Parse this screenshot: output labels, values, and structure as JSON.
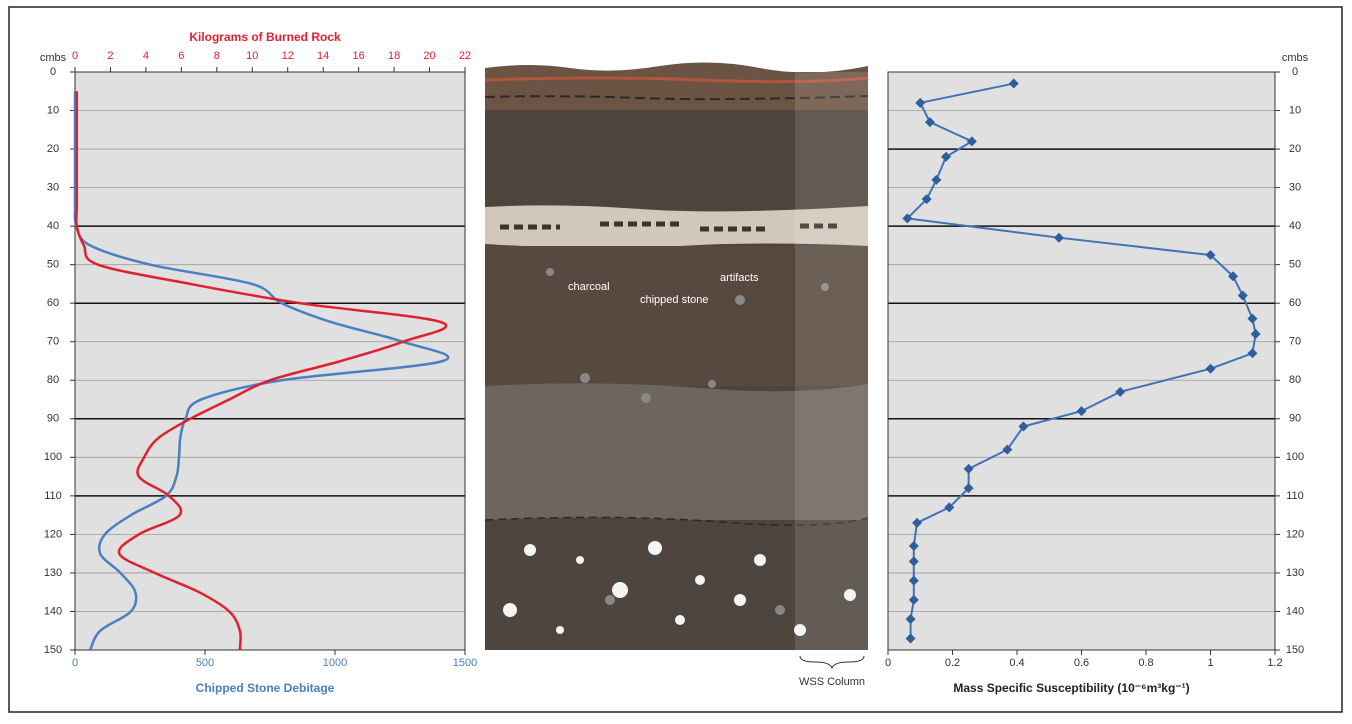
{
  "chart_data": [
    {
      "type": "line",
      "y_label": "cmbs",
      "ylim": [
        0,
        150
      ],
      "yticks": [
        0,
        10,
        20,
        30,
        40,
        50,
        60,
        70,
        80,
        90,
        100,
        110,
        120,
        130,
        140,
        150
      ],
      "horizon_lines": [
        40,
        60,
        90,
        110
      ],
      "grid": true,
      "xlim": [
        0,
        1500
      ],
      "xticks": [
        0,
        500,
        1000,
        1500
      ],
      "x2lim": [
        0,
        22
      ],
      "x2ticks": [
        0,
        2,
        4,
        6,
        8,
        10,
        12,
        14,
        16,
        18,
        20,
        22
      ],
      "y": [
        5,
        10,
        15,
        20,
        25,
        30,
        35,
        40,
        45,
        50,
        55,
        60,
        65,
        70,
        75,
        80,
        85,
        90,
        95,
        100,
        105,
        110,
        115,
        120,
        125,
        130,
        135,
        140,
        145,
        150
      ],
      "series": [
        {
          "name": "Chipped Stone Debitage",
          "color": "#4a7fc0",
          "axis": "x",
          "values": [
            0,
            0,
            0,
            0,
            0,
            0,
            0,
            5,
            58,
            290,
            680,
            795,
            990,
            1260,
            1415,
            795,
            485,
            425,
            405,
            400,
            390,
            350,
            215,
            115,
            97,
            175,
            232,
            215,
            97,
            58
          ]
        },
        {
          "name": "Kilograms of Burned Rock",
          "color": "#e0202e",
          "axis": "x2",
          "values": [
            0.1,
            0.1,
            0.1,
            0.1,
            0.1,
            0.1,
            0.1,
            0.1,
            0.5,
            1.3,
            6.5,
            12.7,
            20.7,
            18.5,
            15,
            11,
            8.7,
            6.5,
            4.7,
            3.9,
            3.6,
            5.3,
            5.9,
            3.6,
            2.5,
            4.5,
            7,
            8.7,
            9.3,
            9.3
          ]
        }
      ]
    },
    {
      "type": "line",
      "y_label": "cmbs",
      "markers": true,
      "ylim": [
        0,
        150
      ],
      "yticks": [
        0,
        10,
        20,
        30,
        40,
        50,
        60,
        70,
        80,
        90,
        100,
        110,
        120,
        130,
        140,
        150
      ],
      "horizon_lines": [
        20,
        40,
        60,
        90,
        110
      ],
      "grid": true,
      "xlim": [
        0,
        1.2
      ],
      "xticks": [
        0,
        0.2,
        0.4,
        0.6,
        0.8,
        1,
        1.2
      ],
      "y": [
        3,
        8,
        13,
        18,
        22,
        28,
        33,
        38,
        43,
        47.5,
        53,
        58,
        64,
        68,
        73,
        77,
        83,
        88,
        92,
        98,
        103,
        108,
        113,
        117,
        123,
        127,
        132,
        137,
        142,
        147
      ],
      "series": [
        {
          "name": "Mass Specific Susceptibility (10⁻⁶m³kg⁻¹)",
          "color": "#3f73b8",
          "axis": "x",
          "values": [
            0.39,
            0.1,
            0.13,
            0.26,
            0.18,
            0.15,
            0.12,
            0.06,
            0.53,
            1.0,
            1.07,
            1.1,
            1.13,
            1.14,
            1.13,
            1.0,
            0.72,
            0.6,
            0.42,
            0.37,
            0.25,
            0.25,
            0.19,
            0.09,
            0.08,
            0.08,
            0.08,
            0.08,
            0.07,
            0.07
          ]
        }
      ]
    }
  ],
  "profile": {
    "labels": [
      "charcoal",
      "chipped stone",
      "artifacts"
    ],
    "column_label": "WSS Column"
  }
}
